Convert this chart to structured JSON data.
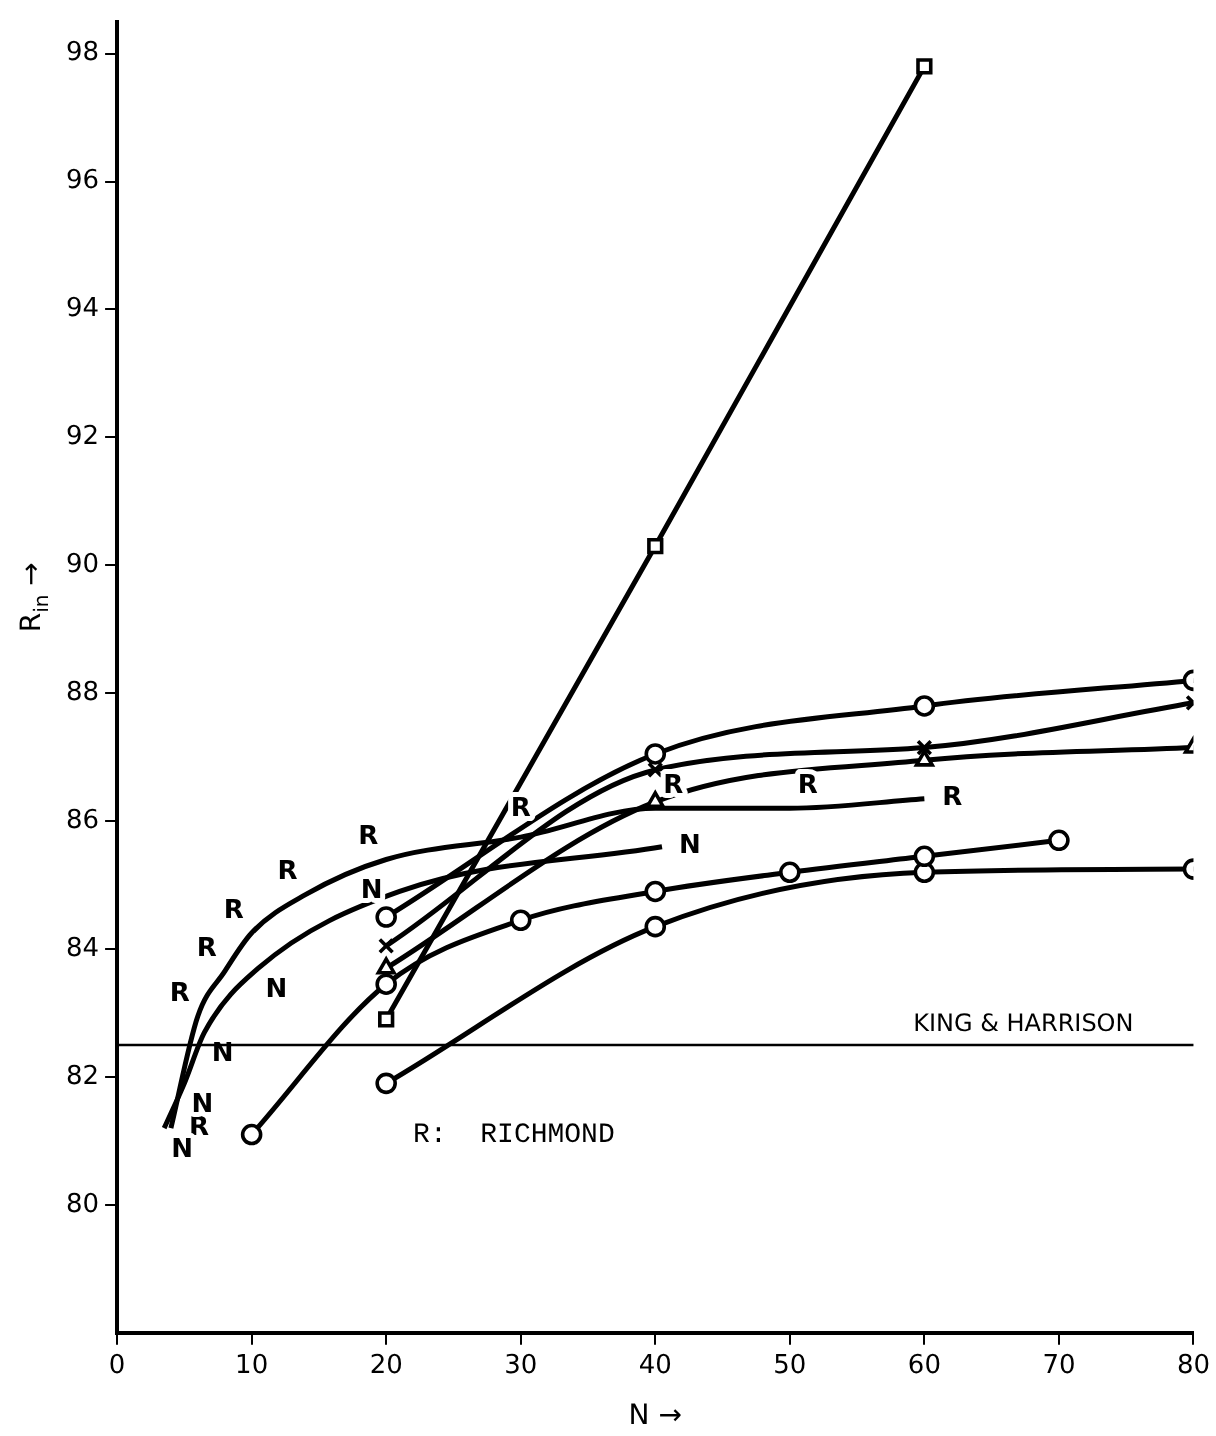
{
  "chart_data": {
    "type": "line",
    "xlabel": "N →",
    "ylabel": "R$_{in}$ →",
    "xlim": [
      0,
      80
    ],
    "ylim": [
      78,
      98.5
    ],
    "xticks": [
      0,
      10,
      20,
      30,
      40,
      50,
      60,
      70,
      80
    ],
    "yticks": [
      80,
      82,
      84,
      86,
      88,
      90,
      92,
      94,
      96,
      98
    ],
    "grid": false,
    "legend": false,
    "series": [
      {
        "color": "#000000",
        "marker": "square",
        "line_style": "solid",
        "type": "line",
        "x": [
          20,
          40,
          60
        ],
        "values": [
          82.9,
          90.3,
          97.8
        ]
      },
      {
        "color": "#000000",
        "marker": "circle",
        "x": [
          20,
          40,
          60,
          80
        ],
        "values": [
          84.5,
          87.05,
          87.8,
          88.2
        ]
      },
      {
        "color": "#000000",
        "marker": "cross",
        "x": [
          20,
          40,
          60,
          80
        ],
        "values": [
          84.05,
          86.8,
          87.15,
          87.85
        ]
      },
      {
        "color": "#000000",
        "marker": "triangle",
        "x": [
          20,
          40,
          60,
          80
        ],
        "values": [
          83.7,
          86.3,
          86.95,
          87.15
        ]
      },
      {
        "name": "R",
        "color": "#000000",
        "marker": "none",
        "x": [
          4,
          6,
          8,
          10,
          14,
          20,
          30,
          40,
          50,
          60
        ],
        "values": [
          81.2,
          82.95,
          83.65,
          84.25,
          84.85,
          85.4,
          85.75,
          86.2,
          86.2,
          86.35
        ]
      },
      {
        "name": "N",
        "color": "#000000",
        "marker": "none",
        "x": [
          3.5,
          5,
          6.5,
          10.5,
          21,
          40.5
        ],
        "values": [
          81.2,
          81.9,
          82.7,
          83.7,
          84.9,
          85.6
        ]
      },
      {
        "color": "#000000",
        "marker": "circle",
        "x": [
          10,
          20,
          30,
          40,
          50,
          60,
          70
        ],
        "values": [
          81.1,
          83.45,
          84.45,
          84.9,
          85.2,
          85.45,
          85.7
        ]
      },
      {
        "color": "#000000",
        "marker": "circle",
        "x": [
          20,
          40,
          60,
          80
        ],
        "values": [
          81.9,
          84.35,
          85.2,
          85.25
        ]
      }
    ],
    "ref_lines": [
      {
        "axis": "y",
        "value": 82.5,
        "label": "KING & HARRISON",
        "color": "#000000"
      }
    ],
    "annotations": [
      "R:  RICHMOND"
    ]
  }
}
